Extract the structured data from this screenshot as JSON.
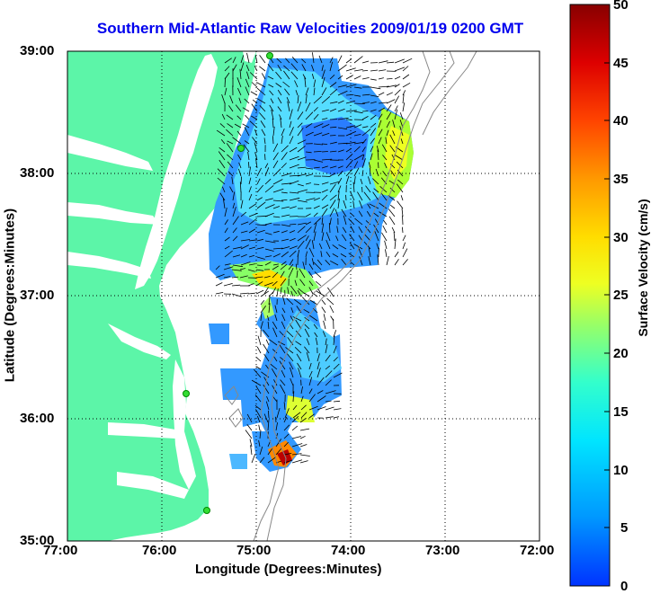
{
  "title": "Southern Mid-Atlantic Raw Velocities 2009/01/19 0200 GMT",
  "x_axis": {
    "label": "Longitude (Degrees:Minutes)",
    "ticks": [
      "77:00",
      "76:00",
      "75:00",
      "74:00",
      "73:00",
      "72:00"
    ]
  },
  "y_axis": {
    "label": "Latitude (Degrees:Minutes)",
    "ticks": [
      "39:00",
      "38:00",
      "37:00",
      "36:00",
      "35:00"
    ]
  },
  "colorbar": {
    "label": "Surface Velocity (cm/s)",
    "ticks": [
      "50",
      "45",
      "40",
      "35",
      "30",
      "25",
      "20",
      "15",
      "10",
      "5",
      "0"
    ],
    "min": 0,
    "max": 50,
    "colors": [
      "#0033ff",
      "#00aaff",
      "#00ffff",
      "#44ff99",
      "#ccff33",
      "#ffff00",
      "#ffaa00",
      "#ff5500",
      "#ee0000",
      "#880000"
    ]
  },
  "map": {
    "land_color": "#5cf5a8",
    "gridlines": "dotted",
    "hf_radar_sites": 5
  }
}
